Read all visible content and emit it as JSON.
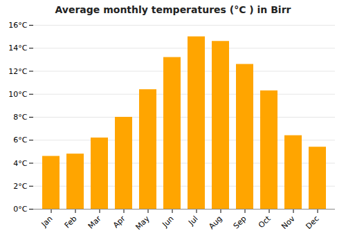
{
  "chart_data": {
    "type": "bar",
    "title": "Average monthly temperatures (°C ) in Birr",
    "categories": [
      "Jan",
      "Feb",
      "Mar",
      "Apr",
      "May",
      "Jun",
      "Jul",
      "Aug",
      "Sep",
      "Oct",
      "Nov",
      "Dec"
    ],
    "values": [
      4.6,
      4.8,
      6.2,
      8.0,
      10.4,
      13.2,
      15.0,
      14.6,
      12.6,
      10.3,
      6.4,
      5.4
    ],
    "color": "#FFA500",
    "ylim": [
      0,
      16
    ],
    "yticks": [
      {
        "value": 0,
        "label": "0°C"
      },
      {
        "value": 2,
        "label": "2°C"
      },
      {
        "value": 4,
        "label": "4°C"
      },
      {
        "value": 6,
        "label": "6°C"
      },
      {
        "value": 8,
        "label": "8°C"
      },
      {
        "value": 10,
        "label": "10°C"
      },
      {
        "value": 12,
        "label": "12°C"
      },
      {
        "value": 14,
        "label": "14°C"
      },
      {
        "value": 16,
        "label": "16°C"
      }
    ],
    "grid": true
  }
}
